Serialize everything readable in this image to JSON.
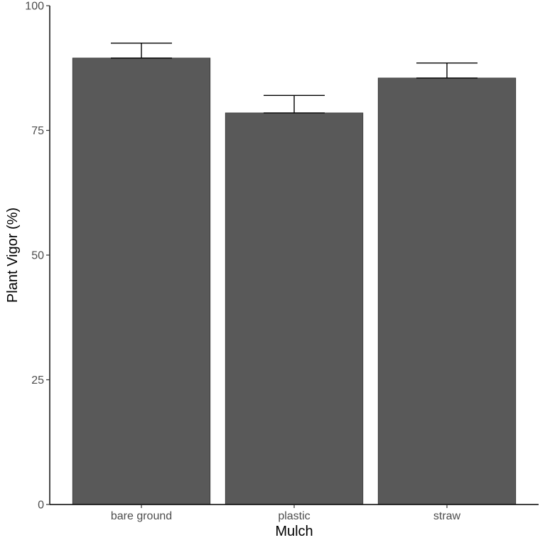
{
  "chart_data": {
    "type": "bar",
    "title": "",
    "xlabel": "Mulch",
    "ylabel": "Plant Vigor (%)",
    "ylim": [
      0,
      100
    ],
    "yticks": [
      0,
      25,
      50,
      75,
      100
    ],
    "categories": [
      "bare ground",
      "plastic",
      "straw"
    ],
    "values": [
      89.5,
      78.5,
      85.5
    ],
    "error_upper": [
      92.5,
      82.0,
      88.5
    ],
    "error_lower": [
      89.5,
      78.5,
      85.5
    ],
    "grid": false,
    "legend": "none",
    "bar_color": "#595959",
    "bar_stroke": "#333333",
    "error_bar_color": "#000000"
  }
}
